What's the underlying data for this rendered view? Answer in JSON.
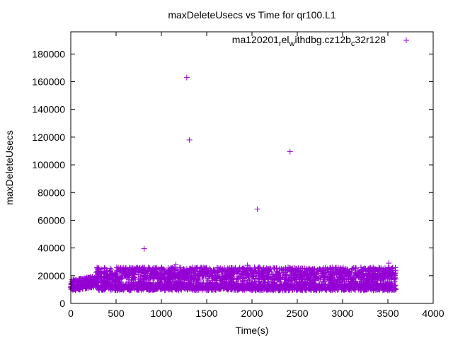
{
  "chart_data": {
    "type": "scatter",
    "title": "maxDeleteUsecs vs Time for qr100.L1",
    "xlabel": "Time(s)",
    "ylabel": "maxDeleteUsecs",
    "xlim": [
      0,
      4000
    ],
    "ylim": [
      0,
      196000
    ],
    "xticks": [
      0,
      500,
      1000,
      1500,
      2000,
      2500,
      3000,
      3500,
      4000
    ],
    "yticks": [
      0,
      20000,
      40000,
      60000,
      80000,
      100000,
      120000,
      140000,
      160000,
      180000
    ],
    "grid": false,
    "legend_position": "top-right",
    "series": [
      {
        "name": "ma120201_rel_withdbg.cz12b_c32r128",
        "color": "#9400d3",
        "marker": "+",
        "outliers": [
          [
            810,
            39500
          ],
          [
            1280,
            163000
          ],
          [
            1310,
            118000
          ],
          [
            2060,
            68000
          ],
          [
            2420,
            109500
          ],
          [
            3510,
            29000
          ],
          [
            1160,
            28000
          ],
          [
            1950,
            27500
          ]
        ],
        "bands": [
          {
            "x": [
              0,
              300
            ],
            "y": [
              9000,
              17000
            ],
            "n": 260
          },
          {
            "x": [
              300,
              3590
            ],
            "y": [
              9500,
              14000
            ],
            "n": 1500
          },
          {
            "x": [
              280,
              3590
            ],
            "y": [
              17000,
              26000
            ],
            "n": 1500
          },
          {
            "x": [
              300,
              3590
            ],
            "y": [
              14000,
              17000
            ],
            "n": 250
          }
        ]
      }
    ]
  }
}
